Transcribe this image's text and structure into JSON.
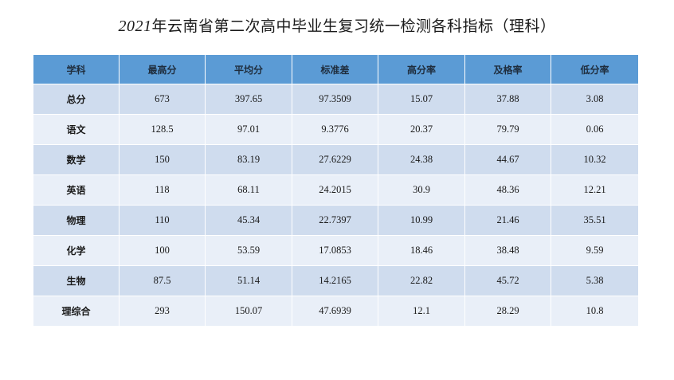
{
  "title": {
    "year": "2021",
    "text": "年云南省第二次高中毕业生复习统一检测各科指标（理科）"
  },
  "table": {
    "headers": [
      "学科",
      "最高分",
      "平均分",
      "标准差",
      "高分率",
      "及格率",
      "低分率"
    ],
    "rows": [
      [
        "总分",
        "673",
        "397.65",
        "97.3509",
        "15.07",
        "37.88",
        "3.08"
      ],
      [
        "语文",
        "128.5",
        "97.01",
        "9.3776",
        "20.37",
        "79.79",
        "0.06"
      ],
      [
        "数学",
        "150",
        "83.19",
        "27.6229",
        "24.38",
        "44.67",
        "10.32"
      ],
      [
        "英语",
        "118",
        "68.11",
        "24.2015",
        "30.9",
        "48.36",
        "12.21"
      ],
      [
        "物理",
        "110",
        "45.34",
        "22.7397",
        "10.99",
        "21.46",
        "35.51"
      ],
      [
        "化学",
        "100",
        "53.59",
        "17.0853",
        "18.46",
        "38.48",
        "9.59"
      ],
      [
        "生物",
        "87.5",
        "51.14",
        "14.2165",
        "22.82",
        "45.72",
        "5.38"
      ],
      [
        "理综合",
        "293",
        "150.07",
        "47.6939",
        "12.1",
        "28.29",
        "10.8"
      ]
    ]
  },
  "colors": {
    "header_bg": "#5b9bd5",
    "row_odd_bg": "#cfdcee",
    "row_even_bg": "#e9eff8"
  }
}
